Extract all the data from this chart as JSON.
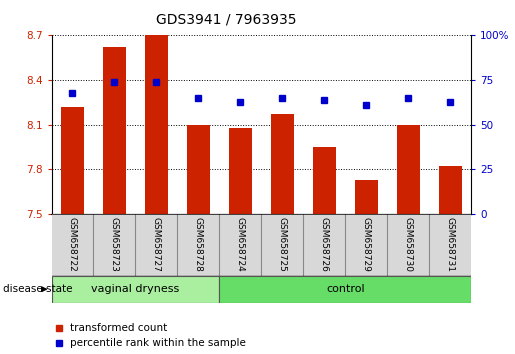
{
  "title": "GDS3941 / 7963935",
  "samples": [
    "GSM658722",
    "GSM658723",
    "GSM658727",
    "GSM658728",
    "GSM658724",
    "GSM658725",
    "GSM658726",
    "GSM658729",
    "GSM658730",
    "GSM658731"
  ],
  "bar_values": [
    8.22,
    8.62,
    8.7,
    8.1,
    8.08,
    8.17,
    7.95,
    7.73,
    8.1,
    7.82
  ],
  "dot_values": [
    68,
    74,
    74,
    65,
    63,
    65,
    64,
    61,
    65,
    63
  ],
  "ylim_left": [
    7.5,
    8.7
  ],
  "ylim_right": [
    0,
    100
  ],
  "yticks_left": [
    7.5,
    7.8,
    8.1,
    8.4,
    8.7
  ],
  "yticks_right": [
    0,
    25,
    50,
    75,
    100
  ],
  "bar_color": "#cc2200",
  "dot_color": "#0000cc",
  "grid_color": "#000000",
  "vd_count": 4,
  "ctrl_count": 6,
  "group_color": "#77ee77",
  "sample_box_color": "#d8d8d8",
  "sample_box_edge": "#888888",
  "tick_label_color_left": "#cc2200",
  "tick_label_color_right": "#0000cc",
  "legend_red_label": "transformed count",
  "legend_blue_label": "percentile rank within the sample",
  "disease_state_label": "disease state",
  "bar_bottom": 7.5
}
